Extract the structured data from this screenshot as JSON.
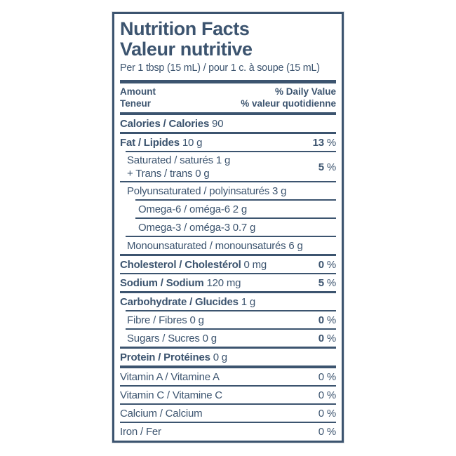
{
  "label": {
    "title_en": "Nutrition Facts",
    "title_fr": "Valeur nutritive",
    "serving": "Per 1 tbsp (15 mL) / pour 1 c. à soupe (15 mL)",
    "column_header": {
      "amount_en": "Amount",
      "amount_fr": "Teneur",
      "daily_value_en": "% Daily Value",
      "daily_value_fr": "% valeur quotidienne"
    },
    "colors": {
      "ink": "#3c546f",
      "background": "#ffffff"
    },
    "percent_sign": "%",
    "rows": [
      {
        "id": "calories",
        "label": "Calories / Calories",
        "amount": "90",
        "dv": "",
        "label_bold": true,
        "dv_bold": false,
        "indent": 0,
        "rule": "none",
        "rule_indent": 0
      },
      {
        "id": "fat",
        "label": "Fat / Lipides",
        "amount": "10 g",
        "dv": "13",
        "label_bold": true,
        "dv_bold": true,
        "indent": 0,
        "rule": "medium",
        "rule_indent": 0
      },
      {
        "id": "saturated-trans",
        "label": "Saturated / saturés",
        "amount": "1 g",
        "dv": "5",
        "label_bold": false,
        "dv_bold": true,
        "indent": 1,
        "rule": "thin",
        "rule_indent": 1,
        "line2": "+ Trans / trans 0 g"
      },
      {
        "id": "polyunsaturated",
        "label": "Polyunsaturated / polyinsaturés",
        "amount": "3 g",
        "dv": "",
        "label_bold": false,
        "dv_bold": false,
        "indent": 1,
        "rule": "thin",
        "rule_indent": 0
      },
      {
        "id": "omega-6",
        "label": "Omega-6 / oméga-6",
        "amount": "2 g",
        "dv": "",
        "label_bold": false,
        "dv_bold": false,
        "indent": 2,
        "rule": "thin",
        "rule_indent": 2
      },
      {
        "id": "omega-3",
        "label": "Omega-3 / oméga-3",
        "amount": "0.7 g",
        "dv": "",
        "label_bold": false,
        "dv_bold": false,
        "indent": 2,
        "rule": "thin",
        "rule_indent": 2
      },
      {
        "id": "monounsaturated",
        "label": "Monounsaturated / monounsaturés",
        "amount": "6 g",
        "dv": "",
        "label_bold": false,
        "dv_bold": false,
        "indent": 1,
        "rule": "thin",
        "rule_indent": 1
      },
      {
        "id": "cholesterol",
        "label": "Cholesterol / Cholestérol",
        "amount": "0 mg",
        "dv": "0",
        "label_bold": true,
        "dv_bold": true,
        "indent": 0,
        "rule": "medium",
        "rule_indent": 0
      },
      {
        "id": "sodium",
        "label": "Sodium / Sodium",
        "amount": "120 mg",
        "dv": "5",
        "label_bold": true,
        "dv_bold": true,
        "indent": 0,
        "rule": "thin",
        "rule_indent": 0
      },
      {
        "id": "carbohydrate",
        "label": "Carbohydrate / Glucides",
        "amount": "1 g",
        "dv": "",
        "label_bold": true,
        "dv_bold": false,
        "indent": 0,
        "rule": "medium",
        "rule_indent": 0
      },
      {
        "id": "fibre",
        "label": "Fibre / Fibres",
        "amount": "0 g",
        "dv": "0",
        "label_bold": false,
        "dv_bold": true,
        "indent": 1,
        "rule": "thin",
        "rule_indent": 1
      },
      {
        "id": "sugars",
        "label": "Sugars / Sucres",
        "amount": "0 g",
        "dv": "0",
        "label_bold": false,
        "dv_bold": true,
        "indent": 1,
        "rule": "thin",
        "rule_indent": 1
      },
      {
        "id": "protein",
        "label": "Protein / Protéines",
        "amount": "0 g",
        "dv": "",
        "label_bold": true,
        "dv_bold": false,
        "indent": 0,
        "rule": "medium",
        "rule_indent": 0
      },
      {
        "id": "vitamin-a",
        "label": "Vitamin A / Vitamine A",
        "amount": "",
        "dv": "0",
        "label_bold": false,
        "dv_bold": false,
        "indent": 0,
        "rule": "thick",
        "rule_indent": 0
      },
      {
        "id": "vitamin-c",
        "label": "Vitamin C / Vitamine C",
        "amount": "",
        "dv": "0",
        "label_bold": false,
        "dv_bold": false,
        "indent": 0,
        "rule": "thin",
        "rule_indent": 0
      },
      {
        "id": "calcium",
        "label": "Calcium / Calcium",
        "amount": "",
        "dv": "0",
        "label_bold": false,
        "dv_bold": false,
        "indent": 0,
        "rule": "thin",
        "rule_indent": 0
      },
      {
        "id": "iron",
        "label": "Iron / Fer",
        "amount": "",
        "dv": "0",
        "label_bold": false,
        "dv_bold": false,
        "indent": 0,
        "rule": "thin",
        "rule_indent": 0
      }
    ]
  }
}
